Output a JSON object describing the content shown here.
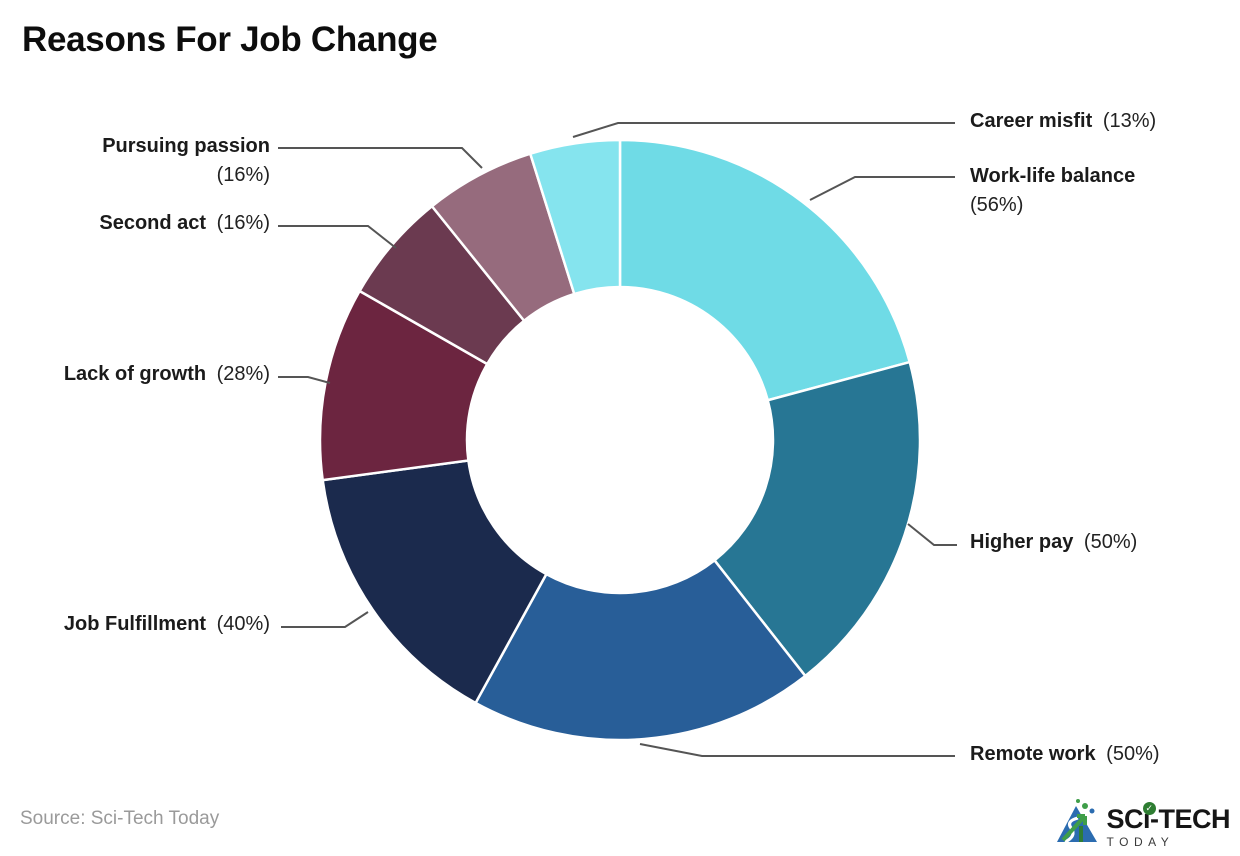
{
  "title": "Reasons For Job Change",
  "source_note": "Source: Sci-Tech Today",
  "logo": {
    "brand_top": "SCi-TECH",
    "brand_bottom": "TODAY",
    "check_icon": "✓"
  },
  "chart_data": {
    "type": "donut",
    "title": "Reasons For Job Change",
    "direction": "clockwise",
    "start_angle_deg": 0,
    "donut_hole_ratio": 0.51,
    "leader_line_color": "#555555",
    "slices": [
      {
        "label": "Work-life balance",
        "value": 56,
        "pct_display": "(56%)",
        "color": "#6FDBE6"
      },
      {
        "label": "Higher pay",
        "value": 50,
        "pct_display": "(50%)",
        "color": "#277694"
      },
      {
        "label": "Remote work",
        "value": 50,
        "pct_display": "(50%)",
        "color": "#285E98"
      },
      {
        "label": "Job Fulfillment",
        "value": 40,
        "pct_display": "(40%)",
        "color": "#1B2A4D"
      },
      {
        "label": "Lack of growth",
        "value": 28,
        "pct_display": "(28%)",
        "color": "#6C2540"
      },
      {
        "label": "Second act",
        "value": 16,
        "pct_display": "(16%)",
        "color": "#6B3A50"
      },
      {
        "label": "Pursuing passion",
        "value": 16,
        "pct_display": "(16%)",
        "color": "#966B7D"
      },
      {
        "label": "Career misfit",
        "value": 13,
        "pct_display": "(13%)",
        "color": "#85E4EE"
      }
    ]
  }
}
